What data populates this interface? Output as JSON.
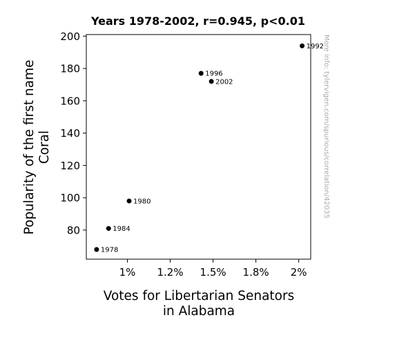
{
  "chart_data": {
    "type": "scatter",
    "title": "Years 1978-2002, r=0.945, p<0.01",
    "xlabel_lines": [
      "Votes for Libertarian Senators",
      "in Alabama"
    ],
    "ylabel_lines": [
      "Popularity of the first name",
      "Coral"
    ],
    "xlim": [
      0.0076,
      0.0207
    ],
    "ylim": [
      62,
      201
    ],
    "x_ticks": [
      {
        "value": 0.01,
        "label": "1%"
      },
      {
        "value": 0.0125,
        "label": "1.2%"
      },
      {
        "value": 0.015,
        "label": "1.5%"
      },
      {
        "value": 0.0175,
        "label": "1.8%"
      },
      {
        "value": 0.02,
        "label": "2%"
      }
    ],
    "y_ticks": [
      {
        "value": 80,
        "label": "80"
      },
      {
        "value": 100,
        "label": "100"
      },
      {
        "value": 120,
        "label": "120"
      },
      {
        "value": 140,
        "label": "140"
      },
      {
        "value": 160,
        "label": "160"
      },
      {
        "value": 180,
        "label": "180"
      },
      {
        "value": 200,
        "label": "200"
      }
    ],
    "points": [
      {
        "label": "1978",
        "x": 0.0082,
        "y": 68
      },
      {
        "label": "1980",
        "x": 0.0101,
        "y": 98
      },
      {
        "label": "1984",
        "x": 0.0089,
        "y": 81
      },
      {
        "label": "1992",
        "x": 0.0202,
        "y": 194
      },
      {
        "label": "1996",
        "x": 0.0143,
        "y": 177
      },
      {
        "label": "2002",
        "x": 0.0149,
        "y": 172
      }
    ],
    "grid": false,
    "point_color": "#000000",
    "watermark": "More info: tylervigen.com/spurious/correlation/42035"
  }
}
